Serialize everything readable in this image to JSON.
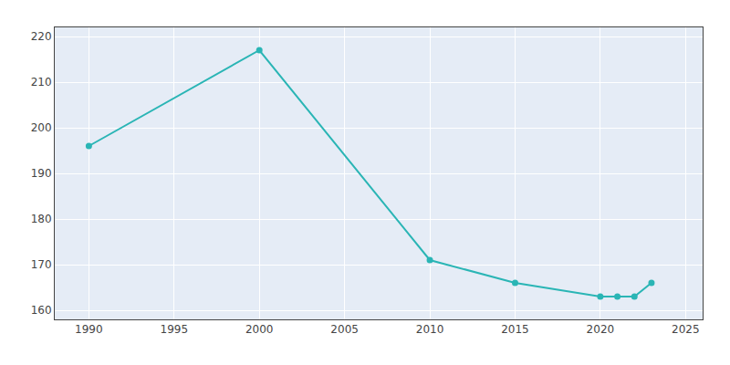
{
  "chart_data": {
    "type": "line",
    "x": [
      1990,
      2000,
      2010,
      2015,
      2020,
      2021,
      2022,
      2023
    ],
    "values": [
      196,
      217,
      171,
      166,
      163,
      163,
      163,
      166
    ],
    "color": "#2ab5b5",
    "marker": "circle",
    "xlim": [
      1988,
      2026
    ],
    "ylim": [
      158,
      222
    ],
    "xticks": [
      1990,
      1995,
      2000,
      2005,
      2010,
      2015,
      2020,
      2025
    ],
    "yticks": [
      160,
      170,
      180,
      190,
      200,
      210,
      220
    ],
    "grid": true
  }
}
